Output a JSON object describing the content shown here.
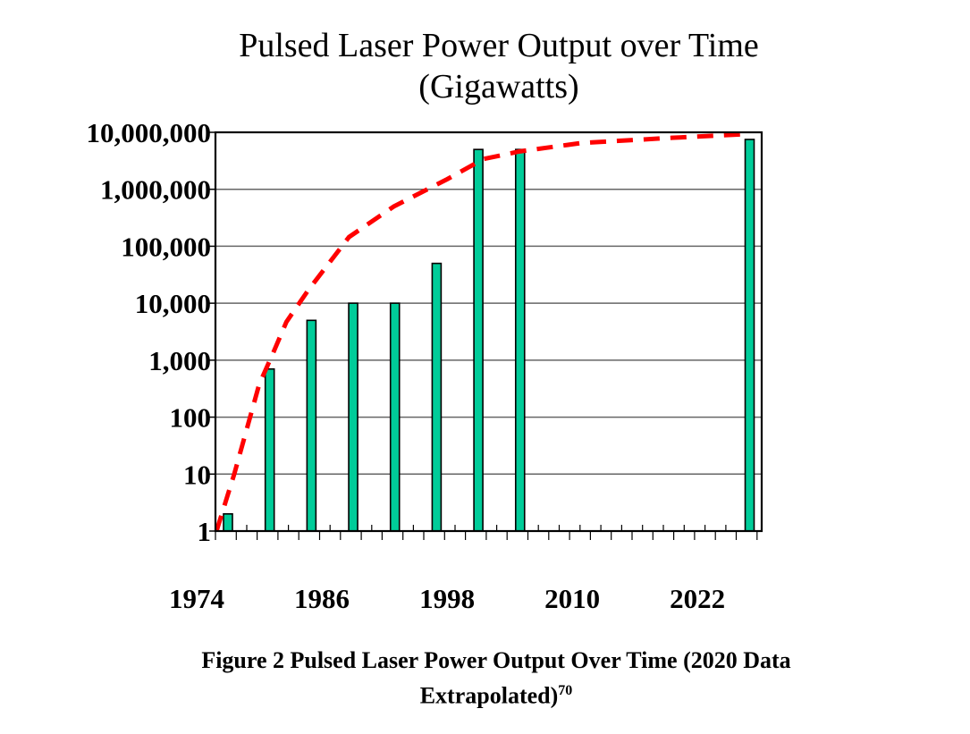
{
  "chart_data": {
    "type": "bar",
    "title": "Pulsed Laser Power Output over Time",
    "subtitle": "(Gigawatts)",
    "caption": "Figure 2 Pulsed Laser Power Output Over Time (2020 Data Extrapolated)",
    "caption_line1": "Figure 2 Pulsed Laser Power Output Over Time (2020 Data",
    "caption_line2": "Extrapolated)",
    "caption_superscript": "70",
    "y_scale": "log",
    "ylim": [
      1,
      10000000
    ],
    "y_ticks": [
      1,
      10,
      100,
      1000,
      10000,
      100000,
      1000000,
      10000000
    ],
    "y_tick_labels": [
      "1",
      "10",
      "100",
      "1,000",
      "10,000",
      "100,000",
      "1,000,000",
      "10,000,000"
    ],
    "x_tick_labels": [
      "1974",
      "1986",
      "1998",
      "2010",
      "2022"
    ],
    "x_ticks": [
      1974,
      1986,
      1998,
      2010,
      2022
    ],
    "grid": true,
    "bars": {
      "x": [
        1977,
        1981,
        1985,
        1989,
        1993,
        1997,
        2001,
        2005,
        2027
      ],
      "values": [
        2,
        700,
        5000,
        10000,
        10000,
        50000,
        5000000,
        5000000,
        7500000
      ],
      "color": "#00cc99"
    },
    "trend": {
      "style": "dashed",
      "color": "#ff0000",
      "x": [
        1975.9,
        1977.6,
        1980.0,
        1981.3,
        1982.6,
        1984.7,
        1988.6,
        1992.9,
        1998.0,
        2001.5,
        2004.9,
        2010.9,
        2019.5,
        2026.8
      ],
      "values": [
        1,
        10,
        380,
        1300,
        4700,
        17000,
        145000,
        500000,
        1500000,
        3400000,
        4600000,
        6500000,
        8000000,
        9300000
      ]
    }
  }
}
